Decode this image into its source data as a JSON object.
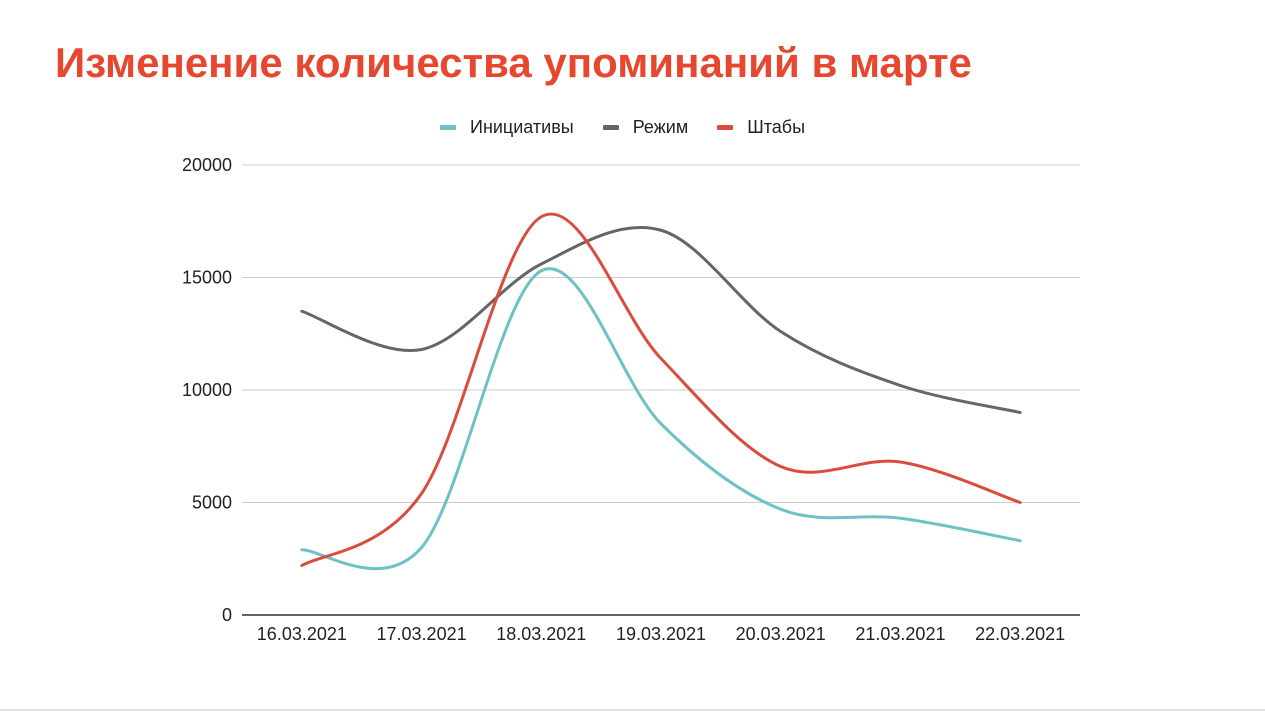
{
  "colors": {
    "title": "#E8472F",
    "text": "#222222",
    "grid": "#CCCCCC",
    "axis": "#333333"
  },
  "chart_data": {
    "type": "line",
    "title": "Изменение количества упоминаний в марте",
    "categories": [
      "16.03.2021",
      "17.03.2021",
      "18.03.2021",
      "19.03.2021",
      "20.03.2021",
      "21.03.2021",
      "22.03.2021"
    ],
    "series": [
      {
        "name": "Инициативы",
        "color": "#6DC2C6",
        "values": [
          2900,
          3000,
          15300,
          8500,
          4700,
          4300,
          3300
        ]
      },
      {
        "name": "Режим",
        "color": "#666666",
        "values": [
          13500,
          11800,
          15600,
          17100,
          12600,
          10200,
          9000
        ]
      },
      {
        "name": "Штабы",
        "color": "#DC4C3E",
        "values": [
          2200,
          5400,
          17700,
          11400,
          6600,
          6800,
          5000
        ]
      }
    ],
    "ylim": [
      0,
      20000
    ],
    "yticks": [
      0,
      5000,
      10000,
      15000,
      20000
    ],
    "grid": true,
    "legend": "top",
    "smooth": true
  }
}
